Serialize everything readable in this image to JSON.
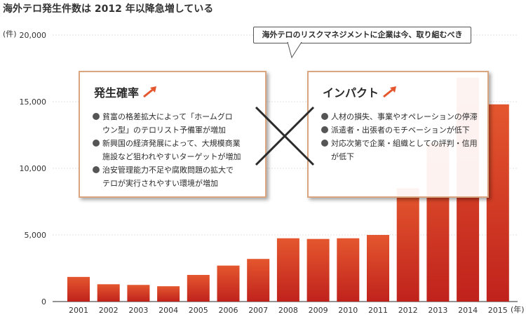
{
  "title": "海外テロ発生件数は 2012 年以降急増している",
  "callout": "海外テロのリスクマネジメントに企業は今、取り組むべき",
  "cards": {
    "left": {
      "heading": "発生確率",
      "items": [
        "貧富の格差拡大によって「ホームグロ\nウン型」のテロリスト予備軍が増加",
        "新興国の経済発展によって、大規模商業\n施設など狙われやすいターゲットが増加",
        "治安管理能力不足や腐敗問題の拡大で\nテロが実行されやすい環境が増加"
      ]
    },
    "right": {
      "heading": "インパクト",
      "items": [
        "人材の損失、事業やオペレーションの停滞",
        "派遣者・出張者のモチベーションが低下",
        "対応次第で企業・組織としての評判・信用\nが低下"
      ]
    }
  },
  "colors": {
    "bar_top": "#e4572e",
    "bar_bottom": "#c0221c",
    "card_border": "#d9a680",
    "arrow": "#e4572e"
  },
  "chart_data": {
    "type": "bar",
    "categories": [
      "2001",
      "2002",
      "2003",
      "2004",
      "2005",
      "2006",
      "2007",
      "2008",
      "2009",
      "2010",
      "2011",
      "2012",
      "2013",
      "2014",
      "2015"
    ],
    "values": [
      1850,
      1300,
      1250,
      1150,
      2000,
      2700,
      3200,
      4750,
      4700,
      4750,
      5000,
      8500,
      11900,
      16800,
      14800
    ],
    "ylim": [
      0,
      20000
    ],
    "yticks": [
      0,
      5000,
      10000,
      15000,
      20000
    ],
    "ytick_labels": [
      "0",
      "5,000",
      "10,000",
      "15,000",
      "20,000"
    ],
    "yunit": "(件)",
    "xunit": "(年)",
    "grid": true
  }
}
